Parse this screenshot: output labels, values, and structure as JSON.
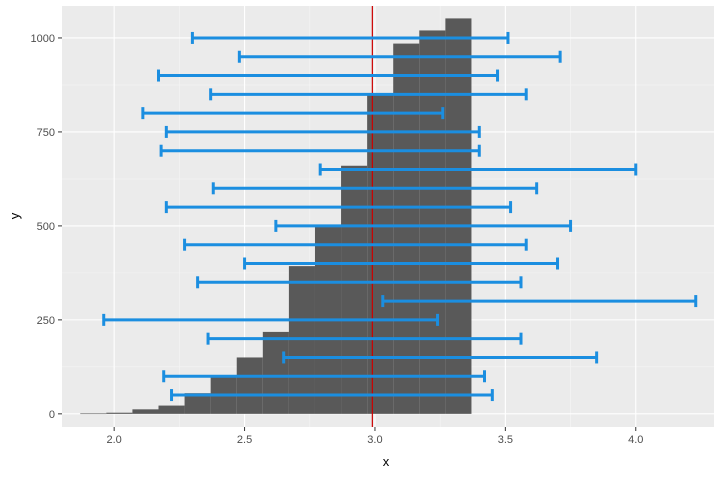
{
  "chart_data": {
    "type": "histogram",
    "xlabel": "x",
    "ylabel": "y",
    "xlim": [
      1.8,
      4.3
    ],
    "ylim": [
      -35,
      1085
    ],
    "x_ticks": [
      "2.0",
      "2.5",
      "3.0",
      "3.5",
      "4.0"
    ],
    "x_tick_values": [
      2.0,
      2.5,
      3.0,
      3.5,
      4.0
    ],
    "y_ticks": [
      "0",
      "250",
      "500",
      "750",
      "1000"
    ],
    "y_tick_values": [
      0,
      250,
      500,
      750,
      1000
    ],
    "grid": true,
    "histogram": {
      "bin_width": 0.1,
      "bins": [
        {
          "x0": 1.87,
          "x1": 1.97,
          "count": 1
        },
        {
          "x0": 1.97,
          "x1": 2.07,
          "count": 3
        },
        {
          "x0": 2.07,
          "x1": 2.17,
          "count": 12
        },
        {
          "x0": 2.17,
          "x1": 2.27,
          "count": 22
        },
        {
          "x0": 2.27,
          "x1": 2.37,
          "count": 55
        },
        {
          "x0": 2.37,
          "x1": 2.47,
          "count": 97
        },
        {
          "x0": 2.47,
          "x1": 2.57,
          "count": 150
        },
        {
          "x0": 2.57,
          "x1": 2.67,
          "count": 218
        },
        {
          "x0": 2.67,
          "x1": 2.77,
          "count": 393
        },
        {
          "x0": 2.77,
          "x1": 2.87,
          "count": 500
        },
        {
          "x0": 2.87,
          "x1": 2.97,
          "count": 660
        },
        {
          "x0": 2.97,
          "x1": 3.07,
          "count": 852
        },
        {
          "x0": 3.07,
          "x1": 3.17,
          "count": 985
        },
        {
          "x0": 3.17,
          "x1": 3.27,
          "count": 1020
        },
        {
          "x0": 3.27,
          "x1": 3.37,
          "count": 1052
        }
      ]
    },
    "vline": {
      "x": 2.99,
      "color": "#cc0000"
    },
    "error_bar_color": "#1b8ee0",
    "intervals": [
      {
        "lower": 2.3,
        "upper": 3.51,
        "y": 1000
      },
      {
        "lower": 2.48,
        "upper": 3.71,
        "y": 950
      },
      {
        "lower": 2.17,
        "upper": 3.47,
        "y": 900
      },
      {
        "lower": 2.37,
        "upper": 3.58,
        "y": 850
      },
      {
        "lower": 2.11,
        "upper": 3.26,
        "y": 800
      },
      {
        "lower": 2.2,
        "upper": 3.4,
        "y": 750
      },
      {
        "lower": 2.18,
        "upper": 3.4,
        "y": 700
      },
      {
        "lower": 2.79,
        "upper": 4.0,
        "y": 650
      },
      {
        "lower": 2.38,
        "upper": 3.62,
        "y": 600
      },
      {
        "lower": 2.2,
        "upper": 3.52,
        "y": 550
      },
      {
        "lower": 2.62,
        "upper": 3.75,
        "y": 500
      },
      {
        "lower": 2.27,
        "upper": 3.58,
        "y": 450
      },
      {
        "lower": 2.5,
        "upper": 3.7,
        "y": 400
      },
      {
        "lower": 2.32,
        "upper": 3.56,
        "y": 350
      },
      {
        "lower": 3.03,
        "upper": 4.23,
        "y": 300
      },
      {
        "lower": 1.96,
        "upper": 3.24,
        "y": 250
      },
      {
        "lower": 2.36,
        "upper": 3.56,
        "y": 200
      },
      {
        "lower": 2.65,
        "upper": 3.85,
        "y": 150
      },
      {
        "lower": 2.19,
        "upper": 3.42,
        "y": 100
      },
      {
        "lower": 2.22,
        "upper": 3.45,
        "y": 50
      }
    ]
  }
}
